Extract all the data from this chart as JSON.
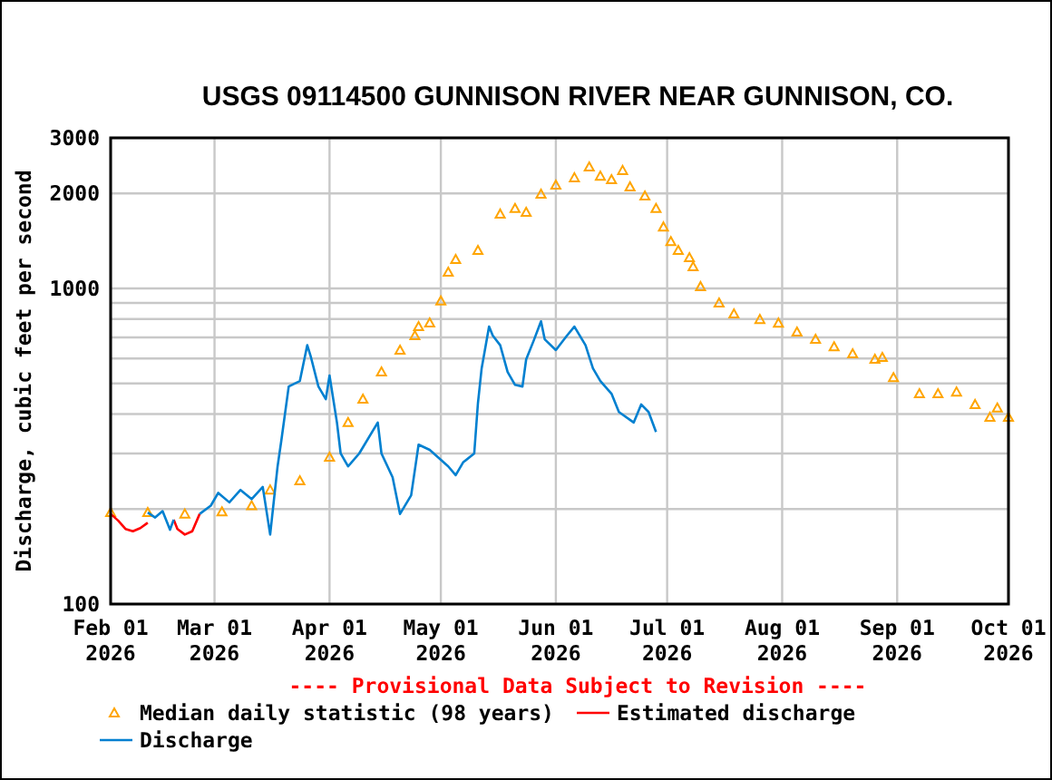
{
  "chart_data": {
    "type": "line",
    "title": "USGS 09114500 GUNNISON RIVER NEAR GUNNISON, CO.",
    "ylabel": "Discharge, cubic feet per second",
    "annotations": [
      "---- Provisional Data Subject to Revision ----"
    ],
    "xlim": [
      "2026-02-01",
      "2026-10-01"
    ],
    "xticks": [
      {
        "value": "2026-02-01",
        "label": "Feb 01\n2026"
      },
      {
        "value": "2026-03-01",
        "label": "Mar 01\n2026"
      },
      {
        "value": "2026-04-01",
        "label": "Apr 01\n2026"
      },
      {
        "value": "2026-05-01",
        "label": "May 01\n2026"
      },
      {
        "value": "2026-06-01",
        "label": "Jun 01\n2026"
      },
      {
        "value": "2026-07-01",
        "label": "Jul 01\n2026"
      },
      {
        "value": "2026-08-01",
        "label": "Aug 01\n2026"
      },
      {
        "value": "2026-09-01",
        "label": "Sep 01\n2026"
      },
      {
        "value": "2026-10-01",
        "label": "Oct 01\n2026"
      }
    ],
    "ylim": [
      100,
      3000
    ],
    "log": true,
    "yticks": [
      100,
      {
        "value": 200,
        "label": null
      },
      {
        "value": 300,
        "label": null
      },
      {
        "value": 400,
        "label": null
      },
      {
        "value": 500,
        "label": null
      },
      {
        "value": 600,
        "label": null
      },
      {
        "value": 700,
        "label": null
      },
      {
        "value": 800,
        "label": null
      },
      {
        "value": 900,
        "label": null
      },
      1000,
      2000,
      3000
    ],
    "grid": true,
    "legend": "bottom",
    "series": [
      {
        "name": "Median daily statistic (98 years)",
        "type": "scatter",
        "marker": "triangle",
        "color": "#ffa500",
        "x": [
          "2026-02-01",
          "2026-02-11",
          "2026-02-21",
          "2026-03-03",
          "2026-03-11",
          "2026-03-16",
          "2026-03-24",
          "2026-04-01",
          "2026-04-06",
          "2026-04-10",
          "2026-04-15",
          "2026-04-20",
          "2026-04-24",
          "2026-04-25",
          "2026-04-28",
          "2026-05-01",
          "2026-05-03",
          "2026-05-05",
          "2026-05-11",
          "2026-05-17",
          "2026-05-21",
          "2026-05-24",
          "2026-05-28",
          "2026-06-01",
          "2026-06-06",
          "2026-06-10",
          "2026-06-13",
          "2026-06-16",
          "2026-06-19",
          "2026-06-21",
          "2026-06-25",
          "2026-06-28",
          "2026-06-30",
          "2026-07-02",
          "2026-07-04",
          "2026-07-07",
          "2026-07-08",
          "2026-07-10",
          "2026-07-15",
          "2026-07-19",
          "2026-07-26",
          "2026-07-31",
          "2026-08-05",
          "2026-08-10",
          "2026-08-15",
          "2026-08-20",
          "2026-08-26",
          "2026-08-28",
          "2026-08-31",
          "2026-09-07",
          "2026-09-12",
          "2026-09-17",
          "2026-09-22",
          "2026-09-26",
          "2026-09-28",
          "2026-10-01"
        ],
        "values": [
          195,
          195,
          193,
          196,
          205,
          230,
          246,
          292,
          376,
          446,
          544,
          638,
          709,
          757,
          778,
          913,
          1127,
          1236,
          1320,
          1722,
          1793,
          1743,
          1991,
          2126,
          2244,
          2428,
          2270,
          2212,
          2366,
          2100,
          1965,
          1793,
          1567,
          1409,
          1320,
          1252,
          1172,
          1014,
          900,
          831,
          798,
          777,
          728,
          690,
          654,
          621,
          597,
          605,
          522,
          464,
          464,
          470,
          429,
          391,
          418,
          391
        ]
      },
      {
        "name": "Estimated discharge",
        "type": "line",
        "color": "#ff0000",
        "x": [
          "2026-02-01",
          "2026-02-03",
          "2026-02-05",
          "2026-02-07",
          "2026-02-09",
          "2026-02-11",
          "2026-02-15",
          "2026-02-18",
          "2026-02-19",
          "2026-02-21",
          "2026-02-23",
          "2026-02-25"
        ],
        "values": [
          193,
          184,
          173,
          170,
          174,
          181,
          null,
          185,
          173,
          166,
          170,
          193
        ]
      },
      {
        "name": "Discharge",
        "type": "line",
        "color": "#0080d0",
        "x": [
          "2026-02-11",
          "2026-02-13",
          "2026-02-15",
          "2026-02-17",
          "2026-02-18",
          "2026-02-21",
          "2026-02-25",
          "2026-02-28",
          "2026-03-02",
          "2026-03-05",
          "2026-03-08",
          "2026-03-11",
          "2026-03-14",
          "2026-03-16",
          "2026-03-18",
          "2026-03-19",
          "2026-03-21",
          "2026-03-24",
          "2026-03-26",
          "2026-03-27",
          "2026-03-29",
          "2026-03-31",
          "2026-04-01",
          "2026-04-03",
          "2026-04-04",
          "2026-04-06",
          "2026-04-09",
          "2026-04-14",
          "2026-04-15",
          "2026-04-18",
          "2026-04-20",
          "2026-04-23",
          "2026-04-25",
          "2026-04-28",
          "2026-05-03",
          "2026-05-05",
          "2026-05-07",
          "2026-05-10",
          "2026-05-11",
          "2026-05-12",
          "2026-05-14",
          "2026-05-15",
          "2026-05-17",
          "2026-05-19",
          "2026-05-21",
          "2026-05-23",
          "2026-05-24",
          "2026-05-26",
          "2026-05-28",
          "2026-05-29",
          "2026-06-01",
          "2026-06-04",
          "2026-06-06",
          "2026-06-09",
          "2026-06-11",
          "2026-06-13",
          "2026-06-16",
          "2026-06-18",
          "2026-06-22",
          "2026-06-24",
          "2026-06-26",
          "2026-06-28"
        ],
        "values": [
          195,
          188,
          197,
          172,
          185,
          null,
          193,
          205,
          225,
          210,
          230,
          215,
          235,
          166,
          273,
          329,
          489,
          509,
          661,
          605,
          489,
          446,
          530,
          376,
          300,
          273,
          300,
          376,
          300,
          252,
          193,
          221,
          320,
          308,
          273,
          256,
          281,
          300,
          433,
          558,
          757,
          709,
          661,
          544,
          495,
          489,
          596,
          682,
          787,
          690,
          638,
          709,
          757,
          661,
          558,
          509,
          464,
          406,
          376,
          429,
          406,
          351
        ]
      }
    ]
  }
}
